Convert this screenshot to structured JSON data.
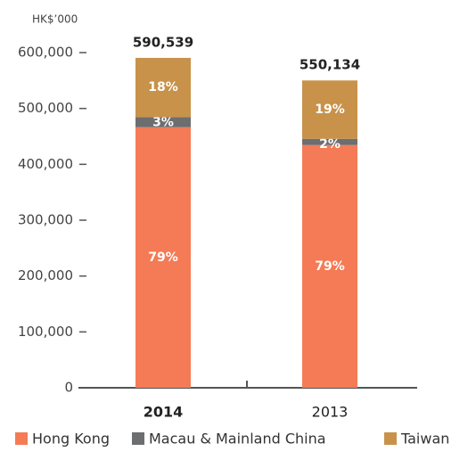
{
  "chart_data": {
    "type": "stacked_bar",
    "unit_label": "HK$’000",
    "categories": [
      "2014",
      "2013"
    ],
    "series": [
      {
        "name": "Hong Kong",
        "color": "#f47b55",
        "values": [
          466526,
          434606
        ],
        "value_labels": [
          "79%",
          "79%"
        ]
      },
      {
        "name": "Macau & Mainland China",
        "color": "#6d6e70",
        "values": [
          17716,
          11003
        ],
        "value_labels": [
          "3%",
          "2%"
        ]
      },
      {
        "name": "Taiwan",
        "color": "#c8924a",
        "values": [
          106297,
          104525
        ],
        "value_labels": [
          "18%",
          "19%"
        ]
      }
    ],
    "totals": [
      590539,
      550134
    ],
    "total_labels": [
      "590,539",
      "550,134"
    ],
    "ylim": [
      0,
      600000
    ],
    "yticks": [
      0,
      {
        "value": 100000,
        "label": "100,000"
      },
      {
        "value": 200000,
        "label": "200,000"
      },
      {
        "value": 300000,
        "label": "300,000"
      },
      {
        "value": 400000,
        "label": "400,000"
      },
      {
        "value": 500000,
        "label": "500,000"
      },
      {
        "value": 600000,
        "label": "600,000"
      }
    ],
    "legend": "bottom"
  }
}
